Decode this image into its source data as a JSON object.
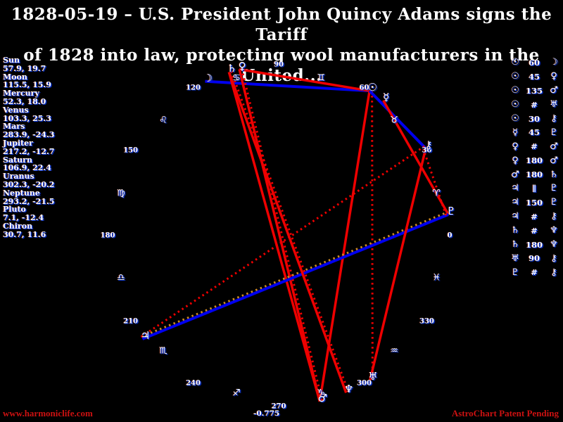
{
  "header": {
    "title_line1": "1828-05-19 – U.S. President John Quincy Adams signs the Tariff",
    "title_line2": "of 1828 into law, protecting wool manufacturers in the United..."
  },
  "colors": {
    "background": "#000000",
    "text": "#ffffff",
    "text_fringe": "#0a36d8",
    "hard_aspect_line": "#ee0000",
    "soft_aspect_line": "#0000ee",
    "parallel_aspect_line": "#cc8822",
    "contra_parallel_line": "#ee0000",
    "watermark": "#cc1111"
  },
  "chart_data": {
    "type": "scatter",
    "subtype": "astrology-wheel",
    "angular_convention": "ecliptic longitude in degrees, 0 at right, increasing counterclockwise, labels every 30",
    "degree_ticks": [
      "0",
      "30",
      "60",
      "90",
      "120",
      "150",
      "180",
      "210",
      "240",
      "270",
      "300",
      "330"
    ],
    "planets": [
      {
        "name": "Sun",
        "glyph": "☉",
        "lon": 57.9,
        "dec": 19.7,
        "display": "57.9, 19.7"
      },
      {
        "name": "Moon",
        "glyph": "☽",
        "lon": 115.5,
        "dec": 15.9,
        "display": "115.5, 15.9"
      },
      {
        "name": "Mercury",
        "glyph": "☿",
        "lon": 52.3,
        "dec": 18.0,
        "display": "52.3, 18.0"
      },
      {
        "name": "Venus",
        "glyph": "♀",
        "lon": 103.3,
        "dec": 25.3,
        "display": "103.3, 25.3"
      },
      {
        "name": "Mars",
        "glyph": "♂",
        "lon": 283.9,
        "dec": -24.3,
        "display": "283.9, -24.3"
      },
      {
        "name": "Jupiter",
        "glyph": "♃",
        "lon": 217.2,
        "dec": -12.7,
        "display": "217.2, -12.7"
      },
      {
        "name": "Saturn",
        "glyph": "♄",
        "lon": 106.9,
        "dec": 22.4,
        "display": "106.9, 22.4"
      },
      {
        "name": "Uranus",
        "glyph": "♅",
        "lon": 302.3,
        "dec": -20.2,
        "display": "302.3, -20.2"
      },
      {
        "name": "Neptune",
        "glyph": "♆",
        "lon": 293.2,
        "dec": -21.5,
        "display": "293.2, -21.5"
      },
      {
        "name": "Pluto",
        "glyph": "♇",
        "lon": 7.1,
        "dec": -12.4,
        "display": "7.1, -12.4"
      },
      {
        "name": "Chiron",
        "glyph": "⚷",
        "lon": 30.7,
        "dec": 11.6,
        "display": "30.7, 11.6"
      }
    ],
    "zodiac_signs": [
      {
        "name": "Aries",
        "glyph": "♈",
        "mid_lon": 15
      },
      {
        "name": "Taurus",
        "glyph": "♉",
        "mid_lon": 45
      },
      {
        "name": "Gemini",
        "glyph": "♊",
        "mid_lon": 75
      },
      {
        "name": "Cancer",
        "glyph": "♋",
        "mid_lon": 105
      },
      {
        "name": "Leo",
        "glyph": "♌",
        "mid_lon": 135
      },
      {
        "name": "Virgo",
        "glyph": "♍",
        "mid_lon": 165
      },
      {
        "name": "Libra",
        "glyph": "♎",
        "mid_lon": 195
      },
      {
        "name": "Scorpio",
        "glyph": "♏",
        "mid_lon": 225
      },
      {
        "name": "Sagittarius",
        "glyph": "♐",
        "mid_lon": 255
      },
      {
        "name": "Capricorn",
        "glyph": "♑",
        "mid_lon": 285
      },
      {
        "name": "Aquarius",
        "glyph": "♒",
        "mid_lon": 315
      },
      {
        "name": "Pisces",
        "glyph": "♓",
        "mid_lon": 345
      }
    ],
    "aspects": [
      {
        "a": "Sun",
        "symbol": "60",
        "b": "Moon",
        "style": "soft"
      },
      {
        "a": "Sun",
        "symbol": "45",
        "b": "Venus",
        "style": "hard"
      },
      {
        "a": "Sun",
        "symbol": "135",
        "b": "Mars",
        "style": "hard"
      },
      {
        "a": "Sun",
        "symbol": "#",
        "b": "Uranus",
        "style": "contra"
      },
      {
        "a": "Sun",
        "symbol": "30",
        "b": "Chiron",
        "style": "soft"
      },
      {
        "a": "Mercury",
        "symbol": "45",
        "b": "Pluto",
        "style": "hard"
      },
      {
        "a": "Venus",
        "symbol": "#",
        "b": "Mars",
        "style": "contra"
      },
      {
        "a": "Venus",
        "symbol": "180",
        "b": "Mars",
        "style": "hard"
      },
      {
        "a": "Mars",
        "symbol": "180",
        "b": "Saturn",
        "style": "hard"
      },
      {
        "a": "Jupiter",
        "symbol": "∥",
        "b": "Pluto",
        "style": "parallel"
      },
      {
        "a": "Jupiter",
        "symbol": "150",
        "b": "Pluto",
        "style": "soft"
      },
      {
        "a": "Jupiter",
        "symbol": "#",
        "b": "Chiron",
        "style": "contra"
      },
      {
        "a": "Saturn",
        "symbol": "#",
        "b": "Neptune",
        "style": "contra"
      },
      {
        "a": "Saturn",
        "symbol": "180",
        "b": "Neptune",
        "style": "hard"
      },
      {
        "a": "Uranus",
        "symbol": "90",
        "b": "Chiron",
        "style": "hard"
      },
      {
        "a": "Pluto",
        "symbol": "#",
        "b": "Chiron",
        "style": "contra"
      }
    ]
  },
  "footer": {
    "offset_value": "-0.775",
    "watermark_left": "www.harmoniclife.com",
    "watermark_right": "AstroChart Patent Pending"
  }
}
